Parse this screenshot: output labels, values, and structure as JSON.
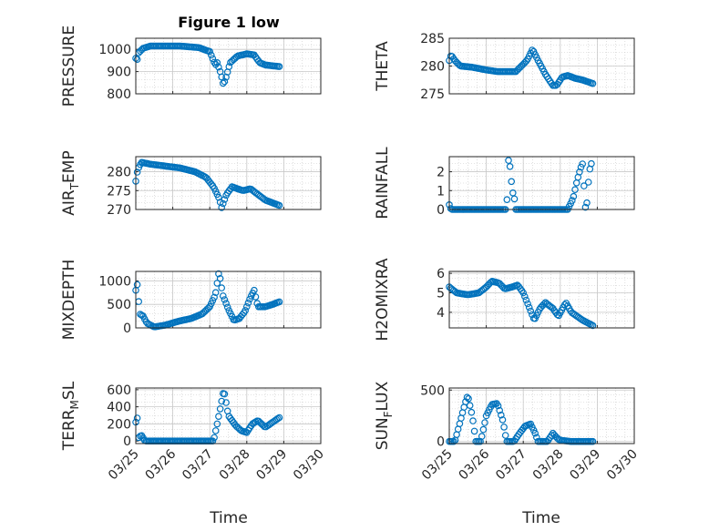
{
  "figure": {
    "title": "Figure 1 low",
    "xlabel_left": "Time",
    "xlabel_right": "Time",
    "x_tick_labels": [
      "03/25",
      "03/26",
      "03/27",
      "03/28",
      "03/29",
      "03/30"
    ]
  },
  "colors": {
    "marker": "#0072BD",
    "axis": "#262626",
    "grid": "#c8c8c8",
    "background": "#ffffff"
  },
  "chart_data": [
    {
      "type": "scatter",
      "ylabel": "PRESSURE",
      "ylim": [
        800,
        1050
      ],
      "yticks": [
        800,
        900,
        1000
      ],
      "xlim": [
        "03/25",
        "03/30"
      ],
      "keys": [
        [
          0,
          960
        ],
        [
          0.02,
          940
        ],
        [
          0.08,
          985
        ],
        [
          0.2,
          1005
        ],
        [
          0.4,
          1015
        ],
        [
          1.2,
          1015
        ],
        [
          1.7,
          1008
        ],
        [
          2.0,
          990
        ],
        [
          2.15,
          930
        ],
        [
          2.2,
          940
        ],
        [
          2.28,
          900
        ],
        [
          2.33,
          870
        ],
        [
          2.37,
          840
        ],
        [
          2.45,
          880
        ],
        [
          2.55,
          940
        ],
        [
          2.75,
          970
        ],
        [
          3.0,
          980
        ],
        [
          3.2,
          975
        ],
        [
          3.35,
          940
        ],
        [
          3.5,
          930
        ],
        [
          3.9,
          922
        ]
      ]
    },
    {
      "type": "scatter",
      "ylabel": "THETA",
      "ylim": [
        275,
        285
      ],
      "yticks": [
        275,
        280,
        285
      ],
      "xlim": [
        "03/25",
        "03/30"
      ],
      "keys": [
        [
          0,
          281
        ],
        [
          0.05,
          282
        ],
        [
          0.15,
          281
        ],
        [
          0.3,
          280
        ],
        [
          0.6,
          279.8
        ],
        [
          1.0,
          279.3
        ],
        [
          1.3,
          279
        ],
        [
          1.6,
          279
        ],
        [
          1.8,
          279
        ],
        [
          2.1,
          281
        ],
        [
          2.25,
          283
        ],
        [
          2.4,
          281
        ],
        [
          2.6,
          278.5
        ],
        [
          2.8,
          276.5
        ],
        [
          2.9,
          276.5
        ],
        [
          3.05,
          278
        ],
        [
          3.2,
          278.3
        ],
        [
          3.4,
          277.8
        ],
        [
          3.6,
          277.5
        ],
        [
          3.9,
          276.8
        ]
      ]
    },
    {
      "type": "scatter",
      "ylabel": "AIR_TEMP",
      "ylim": [
        270,
        284
      ],
      "yticks": [
        270,
        275,
        280
      ],
      "xlim": [
        "03/25",
        "03/30"
      ],
      "keys": [
        [
          0,
          277.5
        ],
        [
          0.05,
          280.5
        ],
        [
          0.15,
          282.5
        ],
        [
          0.4,
          282
        ],
        [
          0.8,
          281.5
        ],
        [
          1.2,
          281
        ],
        [
          1.6,
          280
        ],
        [
          1.9,
          278.5
        ],
        [
          2.1,
          276
        ],
        [
          2.25,
          273
        ],
        [
          2.32,
          270.5
        ],
        [
          2.45,
          274
        ],
        [
          2.6,
          276
        ],
        [
          2.9,
          275
        ],
        [
          3.1,
          275.5
        ],
        [
          3.3,
          274
        ],
        [
          3.5,
          272.5
        ],
        [
          3.9,
          271
        ]
      ]
    },
    {
      "type": "scatter",
      "ylabel": "RAINFALL",
      "ylim": [
        0,
        2.8
      ],
      "yticks": [
        0,
        1,
        2
      ],
      "xlim": [
        "03/25",
        "03/30"
      ],
      "keys": [
        [
          0,
          0.25
        ],
        [
          0.05,
          0
        ],
        [
          1.55,
          0
        ],
        [
          1.6,
          2.6
        ],
        [
          1.65,
          2.2
        ],
        [
          1.7,
          1
        ],
        [
          1.75,
          0.7
        ],
        [
          1.8,
          0
        ],
        [
          3.2,
          0
        ],
        [
          3.35,
          0.6
        ],
        [
          3.45,
          1.5
        ],
        [
          3.55,
          2.2
        ],
        [
          3.62,
          2.5
        ],
        [
          3.66,
          0
        ],
        [
          3.72,
          0.35
        ],
        [
          3.78,
          2.0
        ],
        [
          3.85,
          2.5
        ]
      ]
    },
    {
      "type": "scatter",
      "ylabel": "MIXDEPTH",
      "ylim": [
        0,
        1200
      ],
      "yticks": [
        0,
        500,
        1000
      ],
      "xlim": [
        "03/25",
        "03/30"
      ],
      "keys": [
        [
          0,
          800
        ],
        [
          0.05,
          950
        ],
        [
          0.1,
          300
        ],
        [
          0.2,
          250
        ],
        [
          0.3,
          100
        ],
        [
          0.5,
          20
        ],
        [
          0.8,
          60
        ],
        [
          1.2,
          150
        ],
        [
          1.5,
          200
        ],
        [
          1.8,
          300
        ],
        [
          2.0,
          450
        ],
        [
          2.15,
          700
        ],
        [
          2.25,
          1200
        ],
        [
          2.35,
          700
        ],
        [
          2.5,
          400
        ],
        [
          2.65,
          160
        ],
        [
          2.8,
          200
        ],
        [
          2.95,
          350
        ],
        [
          3.1,
          650
        ],
        [
          3.2,
          800
        ],
        [
          3.3,
          450
        ],
        [
          3.5,
          450
        ],
        [
          3.7,
          500
        ],
        [
          3.9,
          560
        ]
      ]
    },
    {
      "type": "scatter",
      "ylabel": "H2OMIXRA",
      "ylim": [
        3.2,
        6.1
      ],
      "yticks": [
        4,
        5,
        6
      ],
      "xlim": [
        "03/25",
        "03/30"
      ],
      "keys": [
        [
          0,
          5.3
        ],
        [
          0.2,
          5.0
        ],
        [
          0.5,
          4.9
        ],
        [
          0.8,
          5.0
        ],
        [
          1.0,
          5.3
        ],
        [
          1.15,
          5.6
        ],
        [
          1.35,
          5.5
        ],
        [
          1.5,
          5.2
        ],
        [
          1.7,
          5.3
        ],
        [
          1.85,
          5.4
        ],
        [
          2.0,
          5.0
        ],
        [
          2.15,
          4.3
        ],
        [
          2.3,
          3.6
        ],
        [
          2.45,
          4.2
        ],
        [
          2.6,
          4.5
        ],
        [
          2.8,
          4.2
        ],
        [
          2.95,
          3.8
        ],
        [
          3.15,
          4.5
        ],
        [
          3.3,
          4.0
        ],
        [
          3.6,
          3.6
        ],
        [
          3.9,
          3.3
        ]
      ]
    },
    {
      "type": "scatter",
      "ylabel": "TERR_MSL",
      "ylim": [
        -30,
        620
      ],
      "yticks": [
        0,
        200,
        400,
        600
      ],
      "xlim": [
        "03/25",
        "03/30"
      ],
      "keys": [
        [
          0,
          220
        ],
        [
          0.05,
          280
        ],
        [
          0.08,
          40
        ],
        [
          0.15,
          70
        ],
        [
          0.25,
          0
        ],
        [
          2.1,
          0
        ],
        [
          2.2,
          200
        ],
        [
          2.3,
          420
        ],
        [
          2.38,
          600
        ],
        [
          2.5,
          300
        ],
        [
          2.7,
          180
        ],
        [
          2.85,
          120
        ],
        [
          3.0,
          100
        ],
        [
          3.15,
          200
        ],
        [
          3.3,
          240
        ],
        [
          3.5,
          160
        ],
        [
          3.9,
          280
        ]
      ]
    },
    {
      "type": "scatter",
      "ylabel": "SUN_FLUX",
      "ylim": [
        -20,
        520
      ],
      "yticks": [
        0,
        500
      ],
      "xlim": [
        "03/25",
        "03/30"
      ],
      "keys": [
        [
          0,
          0
        ],
        [
          0.15,
          0
        ],
        [
          0.3,
          200
        ],
        [
          0.45,
          400
        ],
        [
          0.5,
          450
        ],
        [
          0.62,
          250
        ],
        [
          0.72,
          0
        ],
        [
          0.85,
          0
        ],
        [
          1.0,
          250
        ],
        [
          1.15,
          360
        ],
        [
          1.3,
          370
        ],
        [
          1.45,
          200
        ],
        [
          1.55,
          0
        ],
        [
          1.75,
          0
        ],
        [
          1.9,
          80
        ],
        [
          2.05,
          150
        ],
        [
          2.2,
          170
        ],
        [
          2.32,
          80
        ],
        [
          2.4,
          0
        ],
        [
          2.65,
          0
        ],
        [
          2.8,
          80
        ],
        [
          2.95,
          20
        ],
        [
          3.05,
          10
        ],
        [
          3.3,
          0
        ],
        [
          3.9,
          0
        ]
      ]
    }
  ]
}
